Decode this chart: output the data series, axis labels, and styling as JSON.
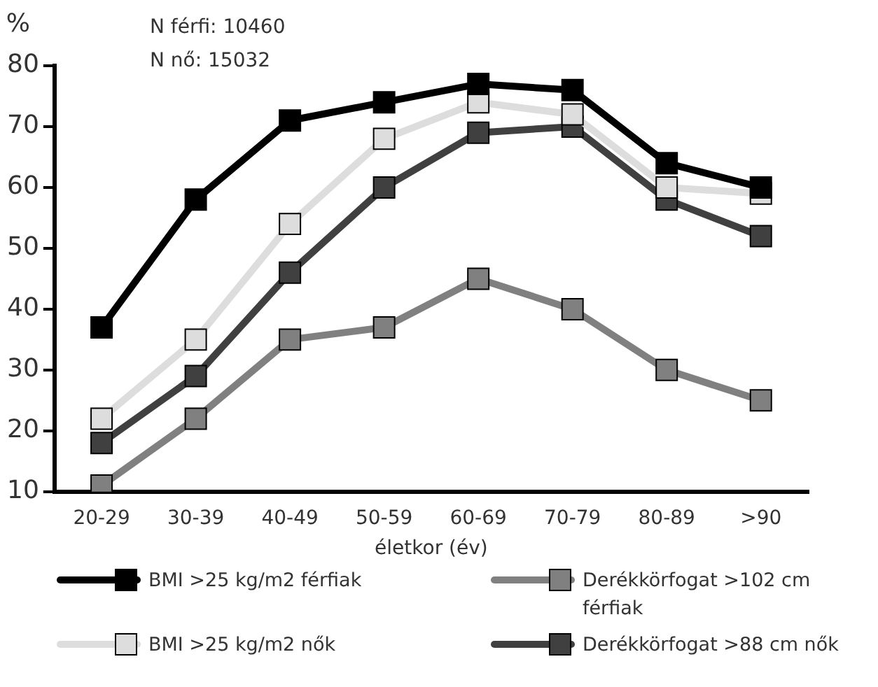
{
  "chart_data": {
    "type": "line",
    "ylabel": "%",
    "xlabel": "életkor (év)",
    "annotations": [
      "N férfi: 10460",
      "N nő: 15032"
    ],
    "categories": [
      "20-29",
      "30-39",
      "40-49",
      "50-59",
      "60-69",
      "70-79",
      "80-89",
      ">90"
    ],
    "series": [
      {
        "name": "BMI >25 kg/m2 férfiak",
        "color": "#000000",
        "values": [
          37,
          58,
          71,
          74,
          77,
          76,
          64,
          60
        ]
      },
      {
        "name": "Derékkörfogat >102 cm férfiak",
        "color": "#808080",
        "values": [
          11,
          22,
          35,
          37,
          45,
          40,
          30,
          25
        ]
      },
      {
        "name": "BMI >25 kg/m2 nők",
        "color": "#dddddd",
        "values": [
          22,
          35,
          54,
          68,
          74,
          72,
          60,
          59
        ]
      },
      {
        "name": "Derékkörfogat >88 cm nők",
        "color": "#404040",
        "values": [
          18,
          29,
          46,
          60,
          69,
          70,
          58,
          52
        ]
      }
    ],
    "ylim": [
      10,
      80
    ],
    "yticks": [
      10,
      20,
      30,
      40,
      50,
      60,
      70,
      80
    ],
    "grid": false,
    "legend": "bottom",
    "marker": "square",
    "line_style": "solid"
  }
}
